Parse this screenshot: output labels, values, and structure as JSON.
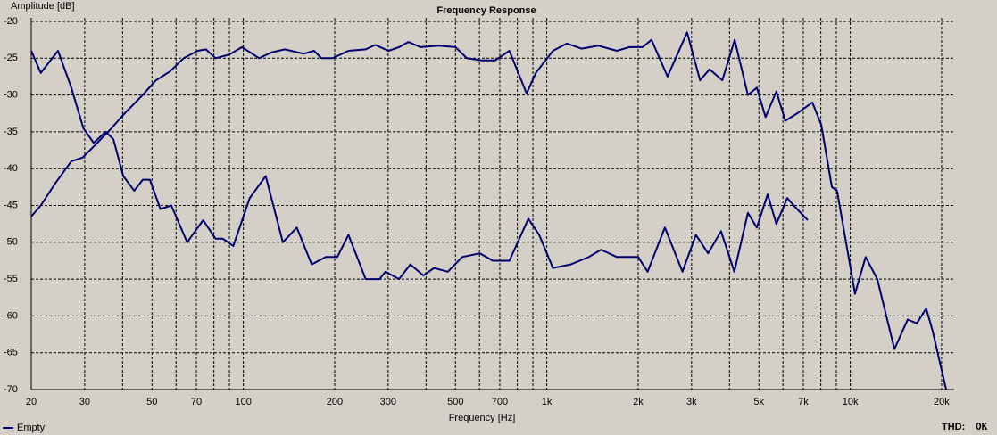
{
  "chart_data": {
    "type": "line",
    "title": "Frequency Response",
    "ylabel": "Amplitude [dB]",
    "xlabel": "Frequency [Hz]",
    "xscale": "log",
    "xlim": [
      20,
      22000
    ],
    "ylim": [
      -70,
      -20
    ],
    "xticks": [
      20,
      30,
      50,
      70,
      100,
      200,
      300,
      500,
      700,
      {
        "value": 1000,
        "label": "1k"
      },
      {
        "value": 2000,
        "label": "2k"
      },
      {
        "value": 3000,
        "label": "3k"
      },
      {
        "value": 5000,
        "label": "5k"
      },
      {
        "value": 7000,
        "label": "7k"
      },
      {
        "value": 10000,
        "label": "10k"
      },
      {
        "value": 20000,
        "label": "20k"
      }
    ],
    "xminorticks": [
      40,
      60,
      80,
      90,
      400,
      600,
      800,
      900,
      4000,
      6000,
      8000,
      9000
    ],
    "yticks": [
      -20,
      -25,
      -30,
      -35,
      -40,
      -45,
      -50,
      -55,
      -60,
      -65,
      -70
    ],
    "grid": true,
    "legend": "bottom-left",
    "series": [
      {
        "name": "Empty",
        "color": "#00006e",
        "x": [
          20,
          21.5,
          24.5,
          27.1,
          29.7,
          32.1,
          35.2,
          37.3,
          40.2,
          43.7,
          46.6,
          49.2,
          53.3,
          57.9,
          65.3,
          73.7,
          81,
          85.5,
          92.7,
          105,
          118.5,
          135,
          150,
          168,
          187,
          204,
          222,
          253,
          281,
          294,
          326,
          355,
          392,
          425,
          472,
          526,
          602,
          664,
          753,
          870,
          944,
          1048,
          1200,
          1375,
          1510,
          1700,
          1870,
          2000,
          2150,
          2450,
          2800,
          3100,
          3400,
          3750,
          4150,
          4600,
          4920,
          5340,
          5710,
          6200,
          6680,
          7240
        ],
        "values": [
          -24,
          -27,
          -24,
          -29,
          -34.5,
          -36.5,
          -35,
          -36,
          -41,
          -43,
          -41.5,
          -41.5,
          -45.5,
          -45,
          -50,
          -47,
          -49.5,
          -49.5,
          -50.5,
          -44,
          -41,
          -50,
          -48,
          -53,
          -52,
          -52,
          -49,
          -55,
          -55,
          -54,
          -55,
          -53,
          -54.5,
          -53.5,
          -54,
          -52,
          -51.5,
          -52.5,
          -52.5,
          -46.8,
          -49,
          -53.5,
          -53,
          -52,
          -51,
          -52,
          -52,
          -52,
          -54,
          -48,
          -54,
          -49,
          -51.5,
          -48.5,
          -54,
          -46,
          -48,
          -43.5,
          -47.5,
          -44,
          -45.5,
          -47
        ]
      },
      {
        "color": "#00006e",
        "x": [
          20,
          21.5,
          24,
          27.1,
          29.5,
          32.1,
          36.8,
          40.6,
          46.6,
          51.5,
          57.3,
          63.6,
          70.8,
          75.3,
          81,
          90,
          99,
          112.7,
          124,
          137,
          158,
          171,
          181,
          197,
          222,
          253,
          272,
          301,
          326,
          350,
          384,
          440,
          500,
          545,
          610,
          675,
          753,
          858,
          920,
          1048,
          1165,
          1300,
          1480,
          1700,
          1870,
          2070,
          2213,
          2500,
          2900,
          3200,
          3440,
          3790,
          4160,
          4600,
          4920,
          5260,
          5710,
          6110,
          6680,
          7500,
          8020,
          8700,
          9050,
          10370,
          11240,
          12280,
          13980,
          15460,
          16560,
          17800,
          18680,
          20700
        ],
        "values": [
          -46.5,
          -45,
          -42,
          -39,
          -38.5,
          -37,
          -34.5,
          -32.5,
          -30,
          -28,
          -26.8,
          -25,
          -24,
          -23.8,
          -25,
          -24.5,
          -23.5,
          -25,
          -24.2,
          -23.8,
          -24.4,
          -24,
          -25,
          -25,
          -24,
          -23.8,
          -23.2,
          -24,
          -23.5,
          -22.8,
          -23.5,
          -23.3,
          -23.5,
          -25,
          -25.3,
          -25.3,
          -24,
          -29.8,
          -27,
          -24,
          -23,
          -23.7,
          -23.3,
          -24,
          -23.5,
          -23.5,
          -22.5,
          -27.5,
          -21.5,
          -28,
          -26.5,
          -28,
          -22.5,
          -30,
          -29,
          -33,
          -29.5,
          -33.5,
          -32.5,
          -31,
          -34,
          -42.5,
          -43,
          -57,
          -52,
          -55,
          -64.5,
          -60.5,
          -61,
          -59,
          -62,
          -70
        ]
      }
    ]
  },
  "status": {
    "label": "THD:",
    "value": "OK"
  }
}
